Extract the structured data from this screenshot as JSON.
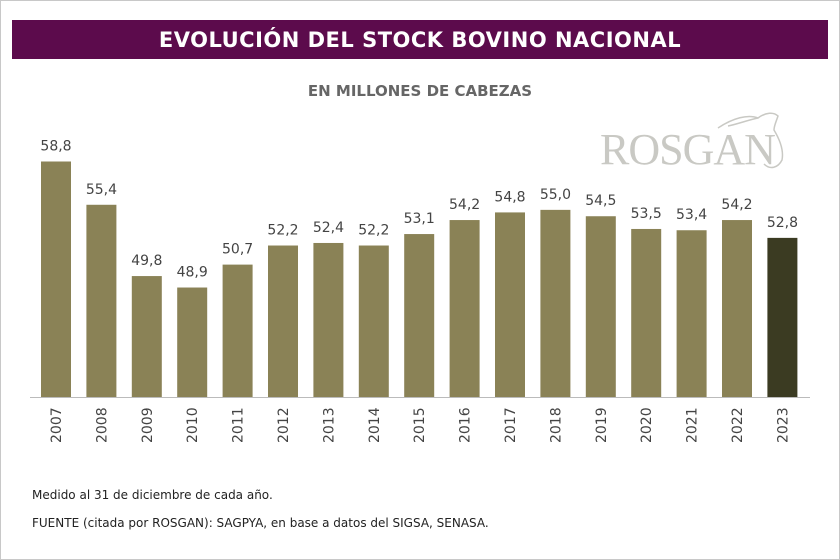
{
  "header": {
    "title": "EVOLUCIÓN DEL STOCK BOVINO NACIONAL"
  },
  "logo": {
    "text": "ROSGAN"
  },
  "footer": {
    "note": "Medido al 31 de diciembre de cada año.",
    "source": "FUENTE (citada por ROSGAN): SAGPYA, en base a datos del SIGSA, SENASA."
  },
  "chart_data": {
    "type": "bar",
    "title": "EVOLUCIÓN DEL STOCK BOVINO NACIONAL",
    "subtitle": "EN MILLONES DE CABEZAS",
    "xlabel": "",
    "ylabel": "",
    "categories": [
      "2007",
      "2008",
      "2009",
      "2010",
      "2011",
      "2012",
      "2013",
      "2014",
      "2015",
      "2016",
      "2017",
      "2018",
      "2019",
      "2020",
      "2021",
      "2022",
      "2023"
    ],
    "values": [
      58.8,
      55.4,
      49.8,
      48.9,
      50.7,
      52.2,
      52.4,
      52.2,
      53.1,
      54.2,
      54.8,
      55.0,
      54.5,
      53.5,
      53.4,
      54.2,
      52.8
    ],
    "labels": [
      "58,8",
      "55,4",
      "49,8",
      "48,9",
      "50,7",
      "52,2",
      "52,4",
      "52,2",
      "53,1",
      "54,2",
      "54,8",
      "55,0",
      "54,5",
      "53,5",
      "53,4",
      "54,2",
      "52,8"
    ],
    "ylim": [
      40.3,
      60
    ],
    "grid": false,
    "colors": {
      "bar": "#8a8256",
      "highlight": "#3b3b22",
      "banner": "#5c0b4c"
    },
    "highlight_index": 16
  }
}
